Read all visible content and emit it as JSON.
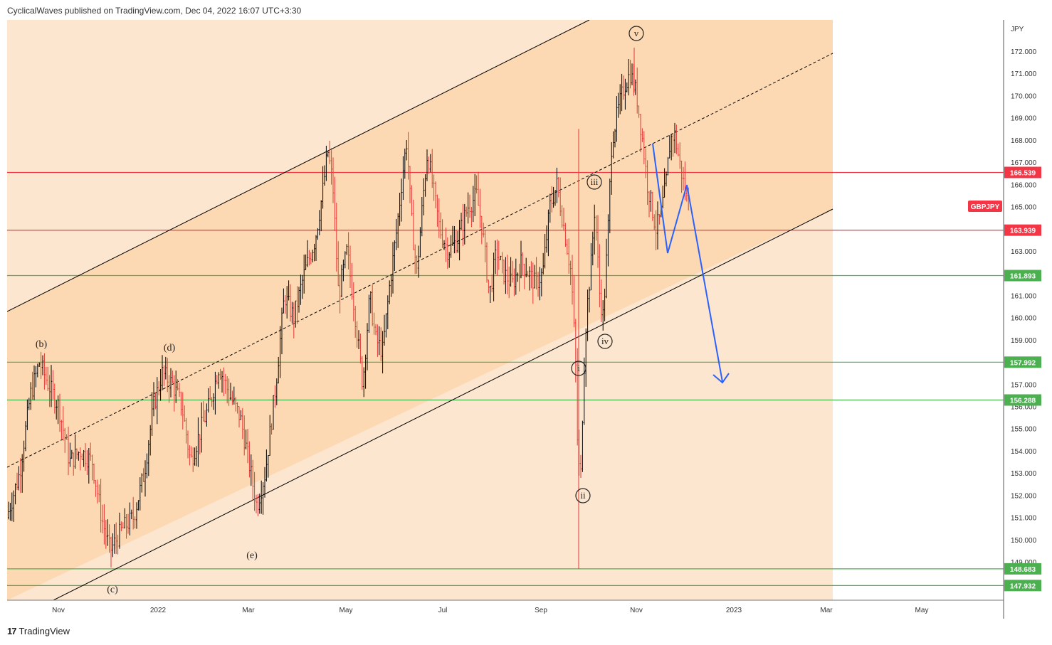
{
  "header": {
    "text": "CyclicalWaves published on TradingView.com, Dec 04, 2022 16:07 UTC+3:30"
  },
  "footer": {
    "logo": "17",
    "brand": "TradingView"
  },
  "colors": {
    "bull": "#000000",
    "bear": "#e53935",
    "support": "#4caf50",
    "resistance": "#f23645",
    "projection": "#2962ff",
    "channel": "#000000",
    "fill_dark": "#fcd9b2",
    "fill_light": "#fde6cf"
  },
  "chart_data": {
    "type": "candlestick",
    "symbol": "GBPJPY",
    "y_unit": "JPY",
    "ylim": [
      147.0,
      173.0
    ],
    "y_ticks": [
      "149.000",
      "150.000",
      "151.000",
      "152.000",
      "153.000",
      "154.000",
      "155.000",
      "156.000",
      "157.000",
      "159.000",
      "160.000",
      "161.000",
      "163.000",
      "165.000",
      "166.000",
      "167.000",
      "168.000",
      "169.000",
      "170.000",
      "171.000",
      "172.000"
    ],
    "x_ticks": [
      "Nov",
      "2022",
      "Mar",
      "May",
      "Jul",
      "Sep",
      "Nov",
      "2023",
      "Mar",
      "May"
    ],
    "horizontal_levels": [
      {
        "label": "166.539",
        "value": 166.539,
        "kind": "resistance"
      },
      {
        "label": "163.939",
        "value": 163.939,
        "kind": "resistance"
      },
      {
        "label": "161.893",
        "value": 161.893,
        "kind": "support"
      },
      {
        "label": "157.992",
        "value": 157.992,
        "kind": "support"
      },
      {
        "label": "156.288",
        "value": 156.288,
        "kind": "support"
      },
      {
        "label": "148.683",
        "value": 148.683,
        "kind": "support"
      },
      {
        "label": "147.932",
        "value": 147.932,
        "kind": "support"
      }
    ],
    "wave_labels": [
      {
        "text": "(b)",
        "circled": false
      },
      {
        "text": "(c)",
        "circled": false
      },
      {
        "text": "(d)",
        "circled": false
      },
      {
        "text": "(e)",
        "circled": false
      },
      {
        "text": "i",
        "circled": true
      },
      {
        "text": "ii",
        "circled": true
      },
      {
        "text": "iii",
        "circled": true
      },
      {
        "text": "iv",
        "circled": true
      },
      {
        "text": "v",
        "circled": true
      }
    ]
  }
}
